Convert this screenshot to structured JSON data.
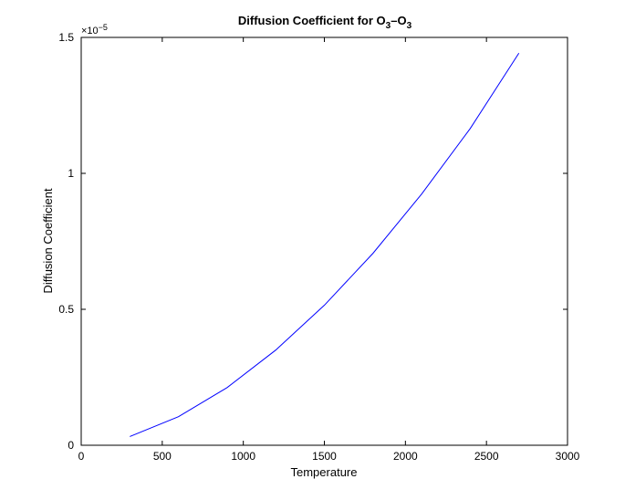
{
  "chart_data": {
    "type": "line",
    "title_parts": {
      "main": "Diffusion Coefficient for O",
      "sub1": "3",
      "dash": "–O",
      "sub2": "3"
    },
    "xlabel": "Temperature",
    "ylabel": "Diffusion Coefficient",
    "xlim": [
      0,
      3000
    ],
    "ylim": [
      0,
      1.5
    ],
    "xticks": [
      0,
      500,
      1000,
      1500,
      2000,
      2500,
      3000
    ],
    "xtick_labels": [
      "0",
      "500",
      "1000",
      "1500",
      "2000",
      "2500",
      "3000"
    ],
    "yticks": [
      0,
      0.5,
      1,
      1.5
    ],
    "ytick_labels": [
      "0",
      "0.5",
      "1",
      "1.5"
    ],
    "y_multiplier": {
      "base": "×10",
      "exponent": "−5"
    },
    "grid": false,
    "series": [
      {
        "color": "#0000ff",
        "x": [
          300,
          600,
          900,
          1200,
          1500,
          1800,
          2100,
          2400,
          2700
        ],
        "y": [
          0.032,
          0.105,
          0.212,
          0.35,
          0.515,
          0.706,
          0.924,
          1.165,
          1.442
        ]
      }
    ]
  }
}
